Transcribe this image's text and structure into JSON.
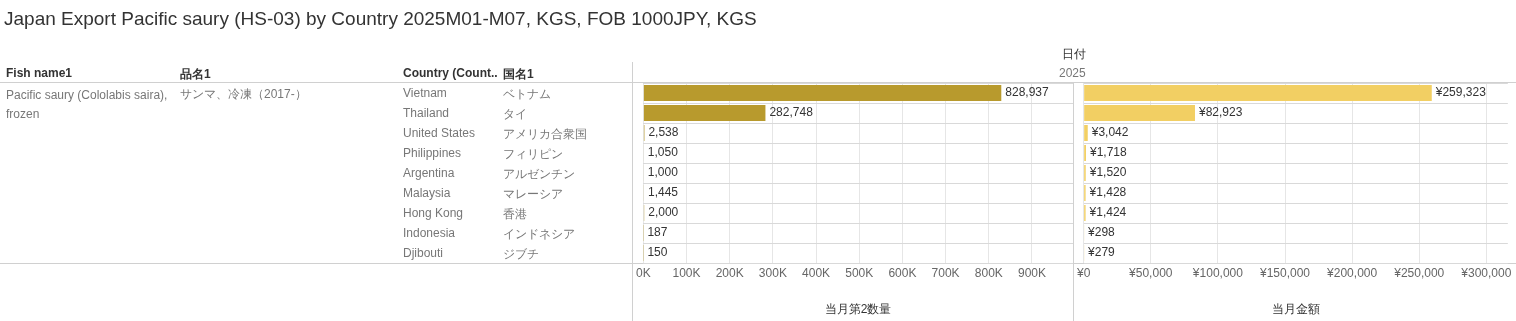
{
  "chart_data": [
    {
      "type": "other",
      "title": "Japan Export Pacific saury (HS-03) by Country 2025M01-M07, KGS, FOB 1000JPY, KGS",
      "annotations": [
        "日付",
        "2025",
        "Fish name1",
        "品名1",
        "Country (Count..",
        "国名1",
        "Pacific saury (Cololabis saira), frozen",
        "サンマ、冷凍（2017-）",
        "ベトナム",
        "タイ",
        "アメリカ合衆国",
        "フィリピン",
        "アルゼンチン",
        "マレーシア",
        "香港",
        "インドネシア",
        "ジブチ"
      ]
    },
    {
      "type": "bar",
      "orientation": "horizontal",
      "xlabel": "当月第2数量",
      "categories": [
        "Vietnam",
        "Thailand",
        "United States",
        "Philippines",
        "Argentina",
        "Malaysia",
        "Hong Kong",
        "Indonesia",
        "Djibouti"
      ],
      "values": [
        828937,
        282748,
        2538,
        1050,
        1000,
        1445,
        2000,
        187,
        150
      ],
      "value_labels": [
        "828,937",
        "282,748",
        "2,538",
        "1,050",
        "1,000",
        "1,445",
        "2,000",
        "187",
        "150"
      ],
      "color": "#b89a2d",
      "tick_labels": "x",
      "grid": true,
      "xlim": [
        0,
        995000
      ],
      "xticks": [
        {
          "value": 0,
          "label": "0K"
        },
        {
          "value": 100000,
          "label": "100K"
        },
        {
          "value": 200000,
          "label": "200K"
        },
        {
          "value": 300000,
          "label": "300K"
        },
        {
          "value": 400000,
          "label": "400K"
        },
        {
          "value": 500000,
          "label": "500K"
        },
        {
          "value": 600000,
          "label": "600K"
        },
        {
          "value": 700000,
          "label": "700K"
        },
        {
          "value": 800000,
          "label": "800K"
        },
        {
          "value": 900000,
          "label": "900K"
        }
      ]
    },
    {
      "type": "bar",
      "orientation": "horizontal",
      "xlabel": "当月金額",
      "categories": [
        null,
        null,
        null,
        null,
        null,
        null,
        null,
        null,
        null
      ],
      "values": [
        259323,
        82923,
        3042,
        1718,
        1520,
        1428,
        1424,
        298,
        279
      ],
      "value_labels": [
        "¥259,323",
        "¥82,923",
        "¥3,042",
        "¥1,718",
        "¥1,520",
        "¥1,428",
        "¥1,424",
        "¥298",
        "¥279"
      ],
      "color": "#f2cf63",
      "tick_labels": "x",
      "grid": true,
      "xlim": [
        0,
        316000
      ],
      "xticks": [
        {
          "value": 0,
          "label": "¥0"
        },
        {
          "value": 50000,
          "label": "¥50,000"
        },
        {
          "value": 100000,
          "label": "¥100,000"
        },
        {
          "value": 150000,
          "label": "¥150,000"
        },
        {
          "value": 200000,
          "label": "¥200,000"
        },
        {
          "value": 250000,
          "label": "¥250,000"
        },
        {
          "value": 300000,
          "label": "¥300,000"
        }
      ]
    }
  ]
}
